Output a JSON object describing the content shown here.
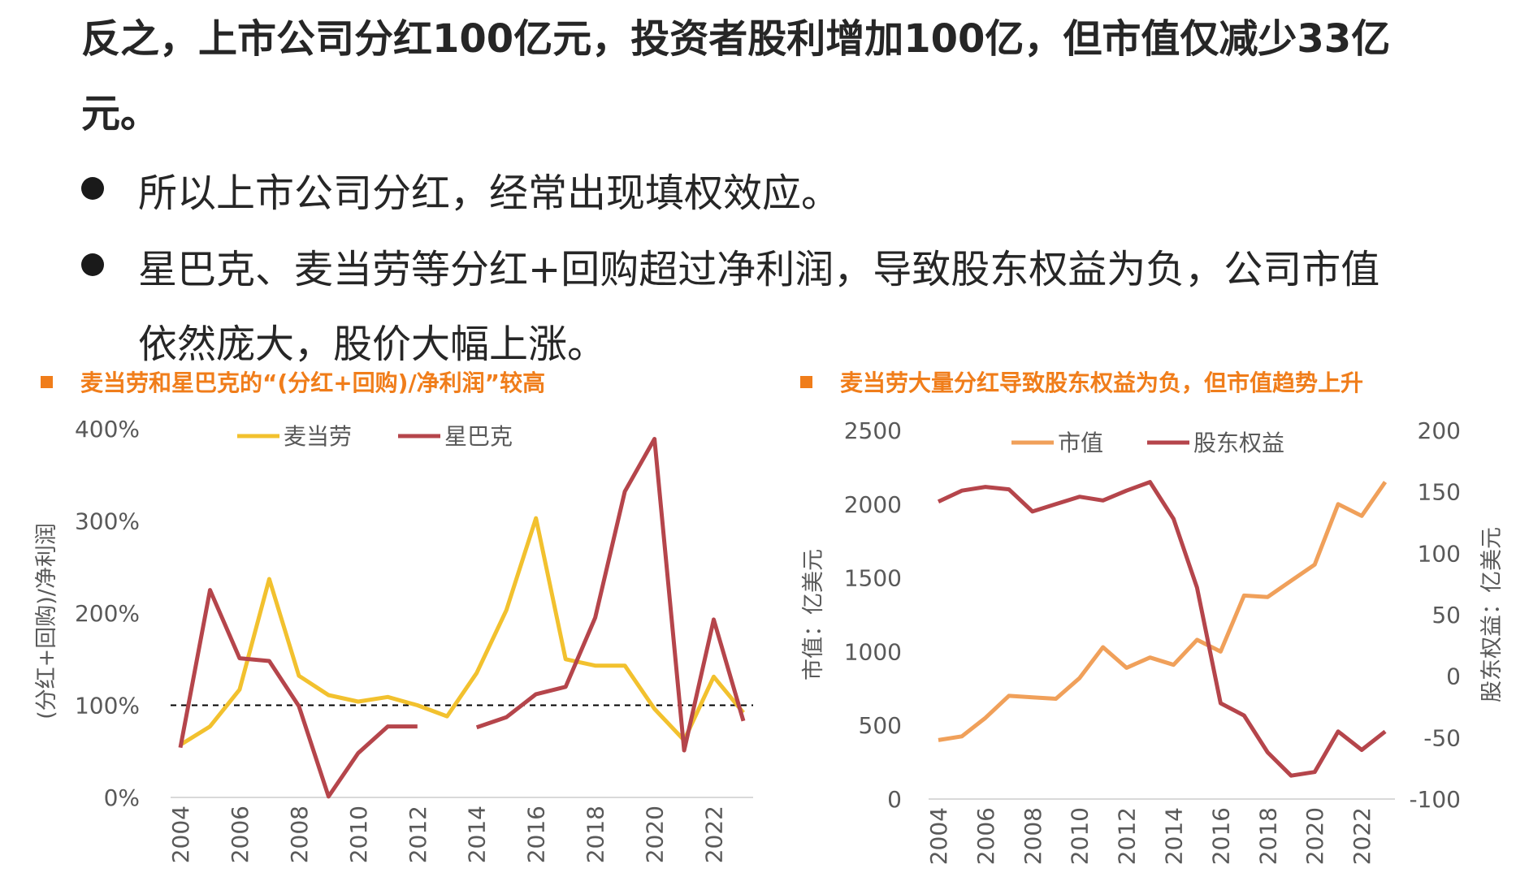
{
  "text": {
    "p1": "反之，上市公司分红100亿元，投资者股利增加100亿，但市值仅减少33亿",
    "p2": "元。",
    "bullet1": "所以上市公司分红，经常出现填权效应。",
    "bullet2": "星巴克、麦当劳等分红+回购超过净利润，导致股东权益为负，公司市值",
    "bullet2_cont": "依然庞大，股价大幅上涨。"
  },
  "colors": {
    "title_orange": "#f07d1a",
    "mcd_yellow": "#f2c12e",
    "sbux_red": "#b5454b",
    "mktcap_orange": "#f0a05a",
    "equity_red": "#b5454b"
  },
  "chart_data": [
    {
      "type": "line",
      "title": "麦当劳和星巴克的“(分红+回购)/净利润”较高",
      "ylabel": "(分红+回购)/净利润",
      "ylim": [
        0,
        4
      ],
      "yticks": [
        "0%",
        "100%",
        "200%",
        "300%",
        "400%"
      ],
      "xticks": [
        "2004",
        "2006",
        "2008",
        "2010",
        "2012",
        "2014",
        "2016",
        "2018",
        "2020",
        "2022"
      ],
      "x": [
        2004,
        2005,
        2006,
        2007,
        2008,
        2009,
        2010,
        2011,
        2012,
        2013,
        2014,
        2015,
        2016,
        2017,
        2018,
        2019,
        2020,
        2021,
        2022,
        2023
      ],
      "reference_line": 1.0,
      "legend_position": "top",
      "series": [
        {
          "name": "麦当劳",
          "color": "#f2c12e",
          "values": [
            0.57,
            0.77,
            1.17,
            2.37,
            1.32,
            1.11,
            1.04,
            1.09,
            1.0,
            0.88,
            1.35,
            2.03,
            3.03,
            1.5,
            1.43,
            1.43,
            0.96,
            0.62,
            1.31,
            0.92
          ]
        },
        {
          "name": "星巴克",
          "color": "#b5454b",
          "values": [
            0.54,
            2.25,
            1.51,
            1.48,
            0.99,
            0.01,
            0.48,
            0.77,
            0.77,
            null,
            0.76,
            0.87,
            1.12,
            1.2,
            1.95,
            3.32,
            3.89,
            0.51,
            1.93,
            0.83
          ]
        }
      ]
    },
    {
      "type": "line",
      "title": "麦当劳大量分红导致股东权益为负，但市值趋势上升",
      "ylabel_left": "市值：亿美元",
      "ylabel_right": "股东权益：亿美元",
      "ylim_left": [
        0,
        2500
      ],
      "ylim_right": [
        -100,
        200
      ],
      "yticks_left": [
        "0",
        "500",
        "1000",
        "1500",
        "2000",
        "2500"
      ],
      "yticks_right": [
        "-100",
        "-50",
        "0",
        "50",
        "100",
        "150",
        "200"
      ],
      "xticks": [
        "2004",
        "2006",
        "2008",
        "2010",
        "2012",
        "2014",
        "2016",
        "2018",
        "2020",
        "2022"
      ],
      "x": [
        2004,
        2005,
        2006,
        2007,
        2008,
        2009,
        2010,
        2011,
        2012,
        2013,
        2014,
        2015,
        2016,
        2017,
        2018,
        2019,
        2020,
        2021,
        2022,
        2023
      ],
      "legend_position": "top",
      "series": [
        {
          "name": "市值",
          "axis": "left",
          "color": "#f0a05a",
          "values": [
            400,
            425,
            550,
            700,
            690,
            680,
            820,
            1030,
            890,
            960,
            910,
            1080,
            1000,
            1380,
            1370,
            1480,
            1590,
            2000,
            1920,
            2150
          ]
        },
        {
          "name": "股东权益",
          "axis": "right",
          "color": "#b5454b",
          "values": [
            142,
            151,
            154,
            152,
            134,
            140,
            146,
            143,
            151,
            158,
            128,
            72,
            -22,
            -32,
            -62,
            -81,
            -78,
            -45,
            -60,
            -45
          ]
        }
      ]
    }
  ]
}
